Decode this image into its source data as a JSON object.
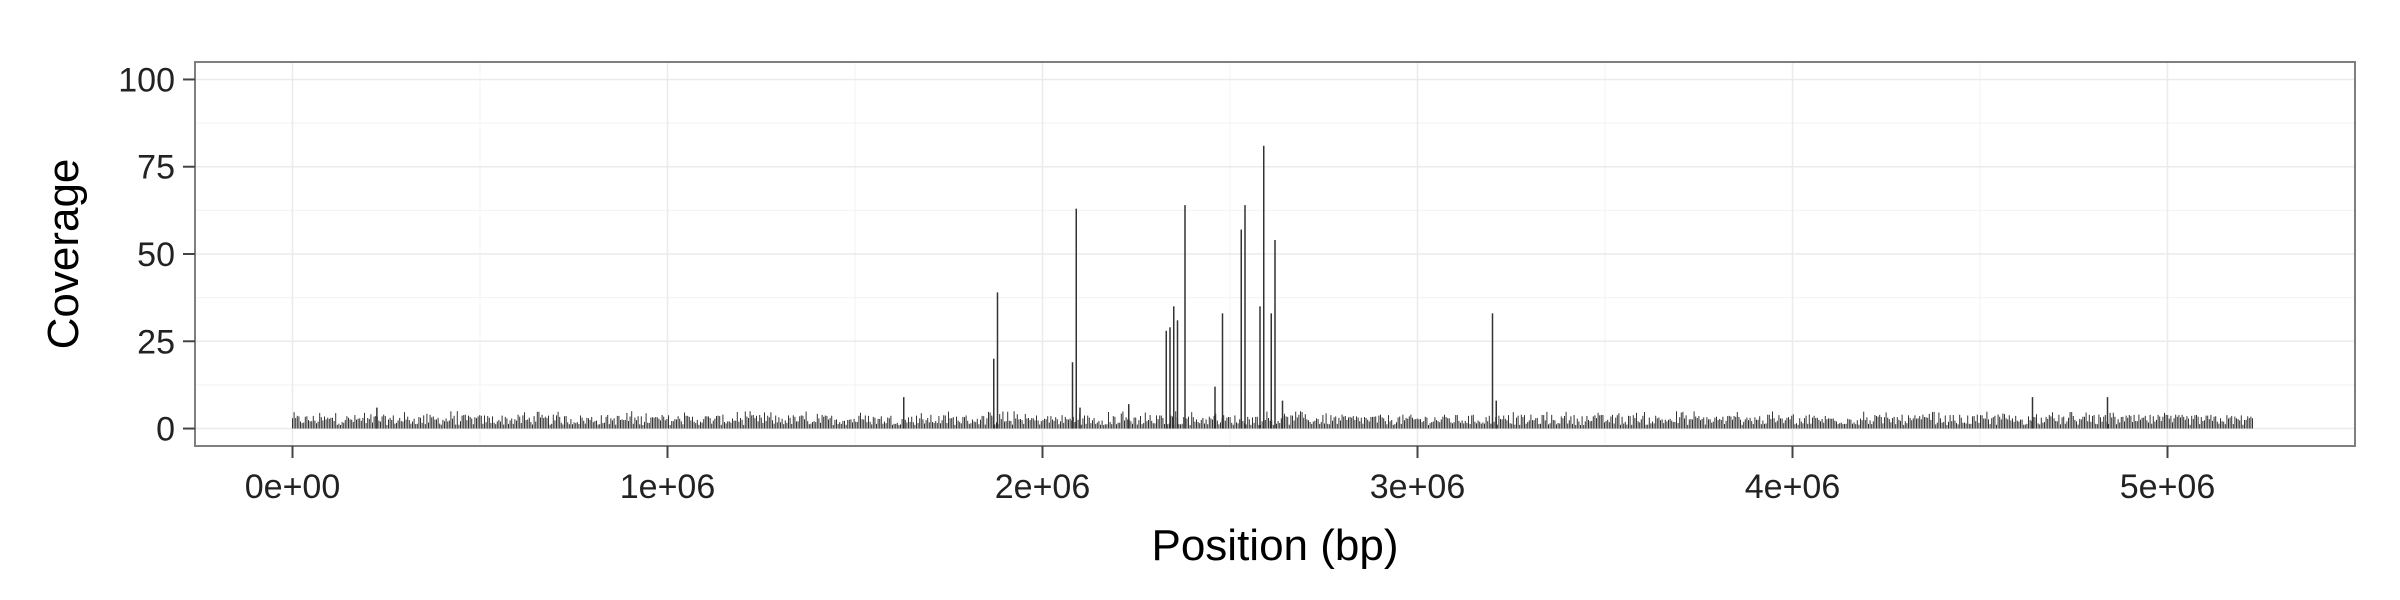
{
  "chart_data": {
    "type": "bar",
    "title": "",
    "xlabel": "Position (bp)",
    "ylabel": "Coverage",
    "xlim": [
      -260000,
      5500000
    ],
    "ylim": [
      -5,
      105
    ],
    "x_ticks": [
      {
        "value": 0,
        "label": "0e+00"
      },
      {
        "value": 1000000,
        "label": "1e+06"
      },
      {
        "value": 2000000,
        "label": "2e+06"
      },
      {
        "value": 3000000,
        "label": "3e+06"
      },
      {
        "value": 4000000,
        "label": "4e+06"
      },
      {
        "value": 5000000,
        "label": "5e+06"
      }
    ],
    "y_ticks": [
      {
        "value": 0,
        "label": "0"
      },
      {
        "value": 25,
        "label": "25"
      },
      {
        "value": 50,
        "label": "50"
      },
      {
        "value": 75,
        "label": "75"
      },
      {
        "value": 100,
        "label": "100"
      }
    ],
    "grid": true,
    "legend": "none",
    "x_range": [
      0,
      5230000
    ],
    "baseline_coverage": {
      "typical_min": 1,
      "typical_max": 4,
      "max": 5
    },
    "peaks": [
      {
        "x": 225000,
        "y": 6
      },
      {
        "x": 1630000,
        "y": 9
      },
      {
        "x": 1870000,
        "y": 20
      },
      {
        "x": 1880000,
        "y": 39
      },
      {
        "x": 2080000,
        "y": 19
      },
      {
        "x": 2090000,
        "y": 63
      },
      {
        "x": 2100000,
        "y": 6
      },
      {
        "x": 2230000,
        "y": 7
      },
      {
        "x": 2330000,
        "y": 28
      },
      {
        "x": 2340000,
        "y": 29
      },
      {
        "x": 2350000,
        "y": 35
      },
      {
        "x": 2360000,
        "y": 31
      },
      {
        "x": 2380000,
        "y": 64
      },
      {
        "x": 2460000,
        "y": 12
      },
      {
        "x": 2480000,
        "y": 33
      },
      {
        "x": 2530000,
        "y": 57
      },
      {
        "x": 2540000,
        "y": 64
      },
      {
        "x": 2580000,
        "y": 35
      },
      {
        "x": 2590000,
        "y": 81
      },
      {
        "x": 2610000,
        "y": 33
      },
      {
        "x": 2620000,
        "y": 54
      },
      {
        "x": 2640000,
        "y": 8
      },
      {
        "x": 3200000,
        "y": 33
      },
      {
        "x": 3210000,
        "y": 8
      },
      {
        "x": 4640000,
        "y": 9
      },
      {
        "x": 4840000,
        "y": 9
      }
    ]
  },
  "colors": {
    "panel_background": "#ebebeb",
    "grid_major": "#ebebeb",
    "grid_minor": "#f3f3f3",
    "bar": "#333333",
    "panel_border": "#7f7f7f"
  }
}
